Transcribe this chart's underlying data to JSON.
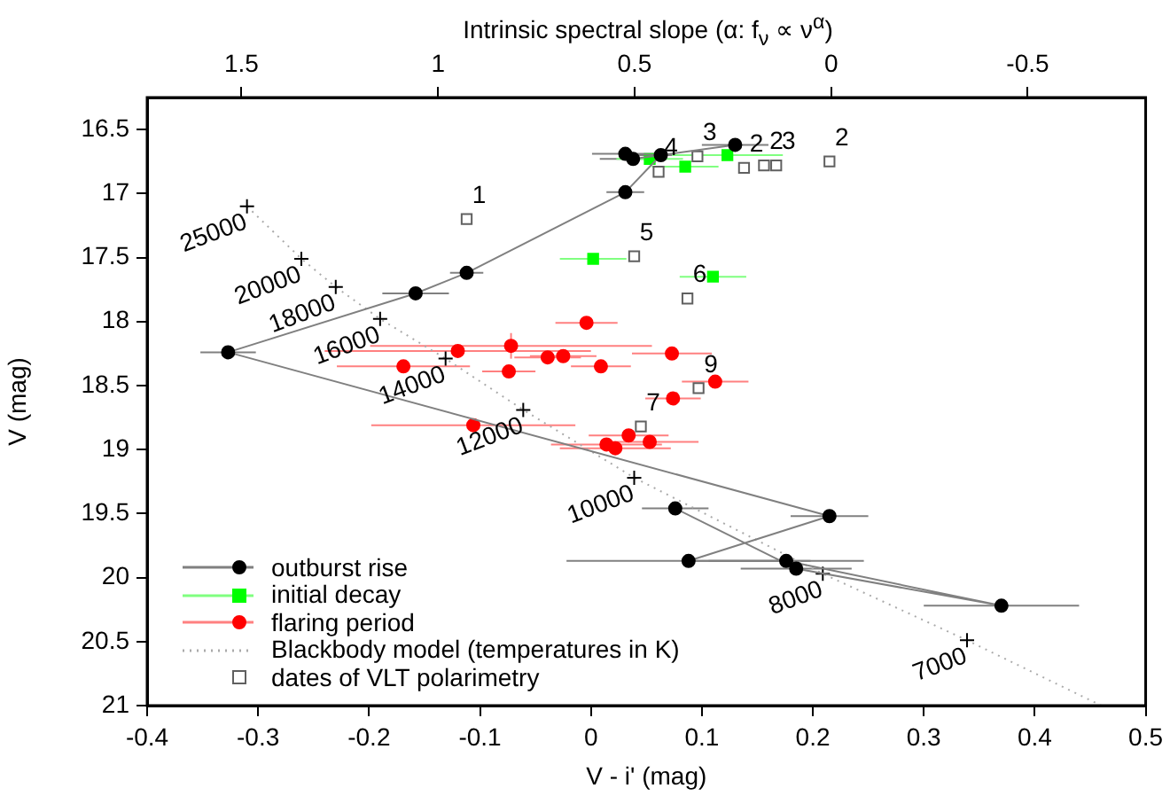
{
  "chart_data": {
    "type": "scatter",
    "xlabel": "V - i' (mag)",
    "ylabel": "V (mag)",
    "x2label": "Intrinsic spectral slope (α: f$_{ν}$ ∝ ν$^{α}$)",
    "xlim": [
      -0.4,
      0.5
    ],
    "xticks": [
      -0.4,
      -0.3,
      -0.2,
      -0.1,
      0,
      0.1,
      0.2,
      0.3,
      0.4,
      0.5
    ],
    "ylim": [
      21,
      16.25
    ],
    "yticks": [
      16.5,
      17,
      17.5,
      18,
      18.5,
      19,
      19.5,
      20,
      20.5,
      21
    ],
    "x2lim": [
      1.74,
      -0.8
    ],
    "x2ticks": [
      1.5,
      1,
      0.5,
      0,
      -0.5
    ],
    "grid": false,
    "legend": "bottom left",
    "annotations": [
      {
        "text": "25000",
        "x": -0.31,
        "y": 17.1
      },
      {
        "text": "20000",
        "x": -0.261,
        "y": 17.51
      },
      {
        "text": "18000",
        "x": -0.23,
        "y": 17.73
      },
      {
        "text": "16000",
        "x": -0.19,
        "y": 17.98
      },
      {
        "text": "14000",
        "x": -0.131,
        "y": 18.29
      },
      {
        "text": "12000",
        "x": -0.061,
        "y": 18.69
      },
      {
        "text": "10000",
        "x": 0.039,
        "y": 19.22
      },
      {
        "text": "8000",
        "x": 0.209,
        "y": 19.97
      },
      {
        "text": "7000",
        "x": 0.339,
        "y": 20.49
      },
      {
        "text": "1",
        "x": -0.112,
        "y": 17.2
      },
      {
        "text": "4",
        "x": 0.061,
        "y": 16.83
      },
      {
        "text": "3",
        "x": 0.096,
        "y": 16.71
      },
      {
        "text": "2",
        "x": 0.138,
        "y": 16.8
      },
      {
        "text": "2",
        "x": 0.156,
        "y": 16.78
      },
      {
        "text": "3",
        "x": 0.167,
        "y": 16.78
      },
      {
        "text": "2",
        "x": 0.215,
        "y": 16.75
      },
      {
        "text": "5",
        "x": 0.039,
        "y": 17.49
      },
      {
        "text": "6",
        "x": 0.087,
        "y": 17.82
      },
      {
        "text": "7",
        "x": 0.045,
        "y": 18.82
      },
      {
        "text": "9",
        "x": 0.097,
        "y": 18.52
      }
    ],
    "series": [
      {
        "name": "outburst rise",
        "type": "line",
        "marker": "circle",
        "color": "#000000",
        "x": [
          0.076,
          0.185,
          0.37,
          0.176,
          0.088,
          0.215,
          -0.327,
          -0.158,
          -0.112,
          0.031,
          0.063,
          0.031,
          0.038,
          0.13
        ],
        "values": [
          19.46,
          19.93,
          20.22,
          19.87,
          19.87,
          19.52,
          18.24,
          17.78,
          17.62,
          16.99,
          16.7,
          16.69,
          16.73,
          16.62
        ],
        "xerrors": [
          0.03,
          0.05,
          0.07,
          0.07,
          0.11,
          0.035,
          0.025,
          0.03,
          0.015,
          0.017,
          0.02,
          0.03,
          0.03,
          0.03
        ]
      },
      {
        "name": "initial decay",
        "type": "scatter",
        "marker": "square",
        "color": "#00ff00",
        "x": [
          0.053,
          0.085,
          0.123,
          0.002,
          0.11
        ],
        "values": [
          16.73,
          16.79,
          16.7,
          17.51,
          17.65
        ],
        "xerrors": [
          0.03,
          0.03,
          0.05,
          0.03,
          0.03
        ]
      },
      {
        "name": "flaring period",
        "type": "scatter",
        "marker": "circle",
        "color": "#ff0000",
        "x": [
          -0.004,
          -0.12,
          -0.072,
          -0.039,
          -0.025,
          0.073,
          -0.169,
          -0.074,
          0.009,
          0.112,
          0.074,
          -0.106,
          0.034,
          0.053,
          0.014,
          0.022
        ],
        "values": [
          18.01,
          18.23,
          18.19,
          18.28,
          18.27,
          18.25,
          18.35,
          18.39,
          18.35,
          18.47,
          18.6,
          18.81,
          18.89,
          18.94,
          18.96,
          18.99
        ],
        "xerrors": [
          0.028,
          0.12,
          0.127,
          0.03,
          0.03,
          0.036,
          0.06,
          0.024,
          0.027,
          0.03,
          0.025,
          0.092,
          0.036,
          0.044,
          0.05,
          0.05
        ],
        "errors": [
          null,
          null,
          0.1,
          null,
          null,
          null,
          null,
          null,
          null,
          null,
          null,
          null,
          null,
          null,
          null,
          null
        ]
      },
      {
        "name": "Blackbody model (temperatures in K)",
        "type": "line",
        "marker": "cross",
        "line_style": "dotted",
        "color": "#aaaaaa",
        "x": [
          -0.31,
          -0.261,
          -0.23,
          -0.19,
          -0.131,
          -0.061,
          0.039,
          0.209,
          0.339,
          0.46
        ],
        "values": [
          17.1,
          17.51,
          17.73,
          17.98,
          18.29,
          18.69,
          19.22,
          19.97,
          20.49,
          21.0
        ]
      },
      {
        "name": "dates of VLT polarimetry",
        "type": "scatter",
        "marker": "square",
        "color": "#606060",
        "x": [
          -0.112,
          0.061,
          0.096,
          0.138,
          0.156,
          0.167,
          0.215,
          0.039,
          0.087,
          0.045,
          0.097
        ],
        "values": [
          17.2,
          16.83,
          16.71,
          16.8,
          16.78,
          16.78,
          16.75,
          17.49,
          17.82,
          18.82,
          18.52
        ]
      }
    ]
  }
}
